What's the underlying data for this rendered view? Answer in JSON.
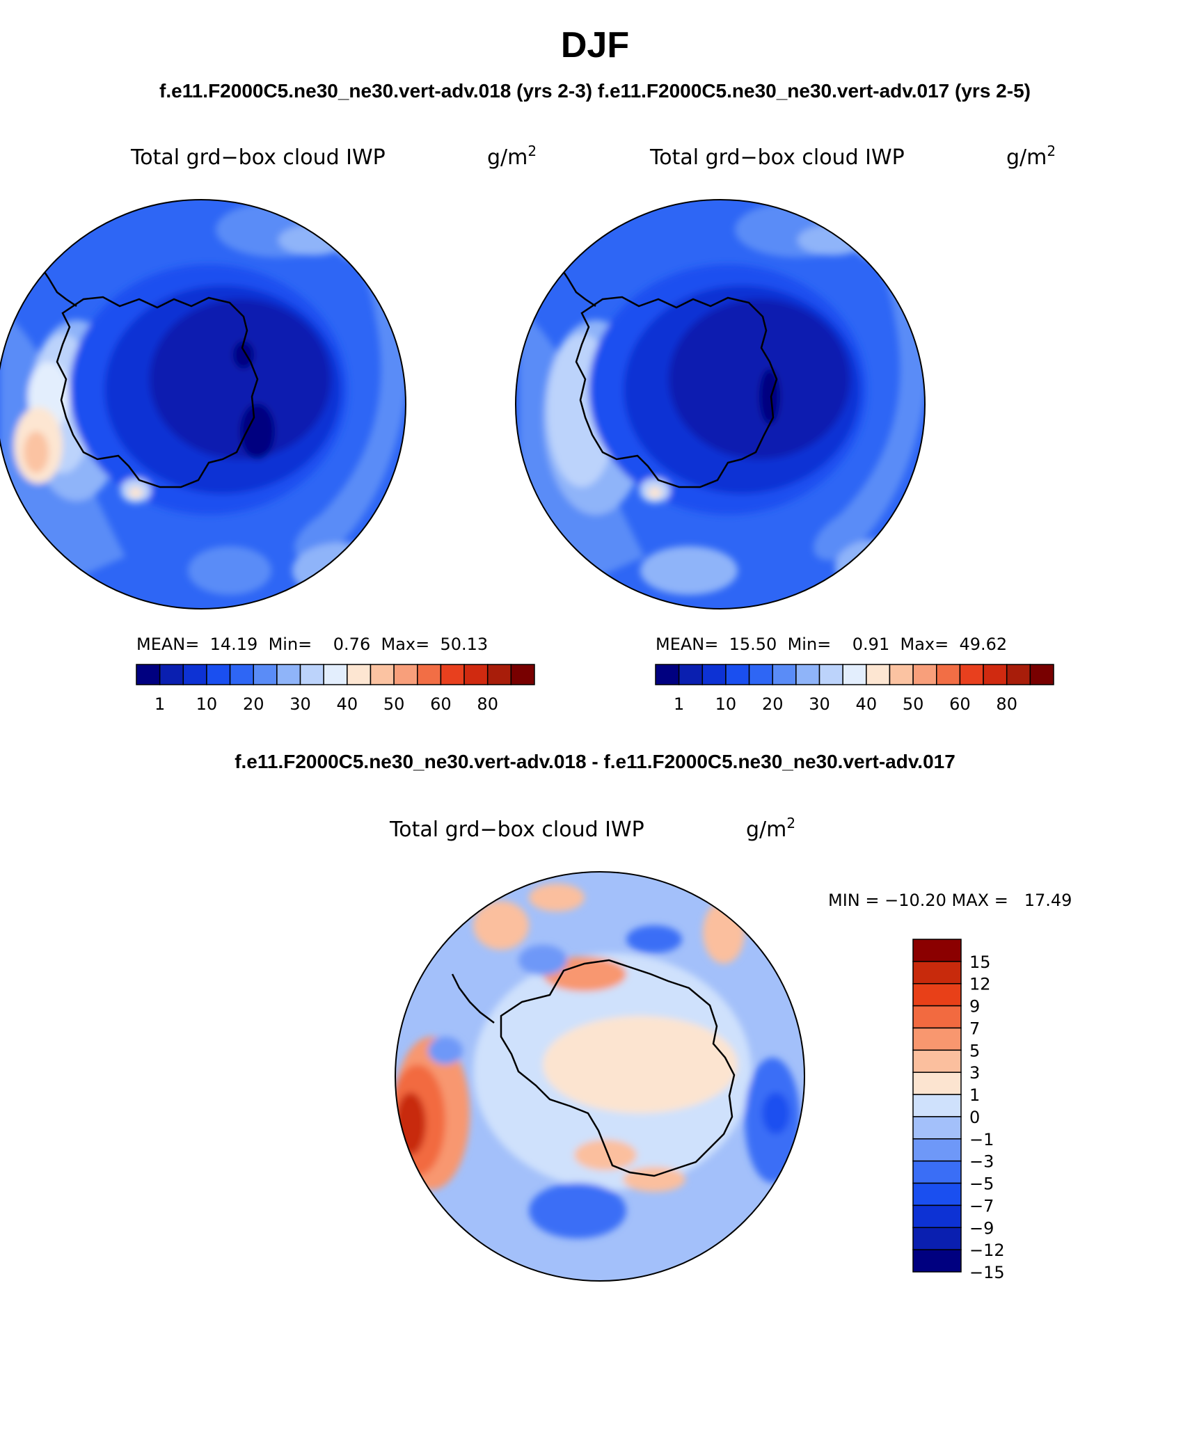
{
  "header": {
    "season": "DJF",
    "cases_line": "f.e11.F2000C5.ne30_ne30.vert-adv.018 (yrs 2-3) f.e11.F2000C5.ne30_ne30.vert-adv.017 (yrs 2-5)",
    "diff_line": "f.e11.F2000C5.ne30_ne30.vert-adv.018 - f.e11.F2000C5.ne30_ne30.vert-adv.017"
  },
  "colors": {
    "land_outline": "#000000",
    "abs_scale": [
      "#000080",
      "#0a1fb0",
      "#0d32d4",
      "#1a4ff0",
      "#2e66f5",
      "#5a8cf7",
      "#8fb4f9",
      "#bcd3fb",
      "#e3eefd",
      "#fde6d2",
      "#fbc3a2",
      "#f89f7b",
      "#f26e45",
      "#e8401e",
      "#d02a10",
      "#a81d0a",
      "#780000"
    ],
    "diff_scale": [
      "#000080",
      "#0a1fb0",
      "#0d32d4",
      "#1a4ff0",
      "#3a6ef6",
      "#6e98f8",
      "#a3c0fa",
      "#cfe1fc",
      "#fce4d0",
      "#fbbf9e",
      "#f8976f",
      "#f26a40",
      "#e84018",
      "#c82a0c",
      "#8b0000"
    ]
  },
  "chart_data": [
    {
      "type": "polar-contour-map",
      "panel": "case1",
      "title": "Total grd−box cloud IWP",
      "units_base": "g/m",
      "units_exp": "2",
      "stats_line": "MEAN=  14.19  Min=    0.76  Max=  50.13",
      "stats": {
        "mean": 14.19,
        "min": 0.76,
        "max": 50.13
      },
      "colorbar_ticks": [
        "1",
        "10",
        "20",
        "30",
        "40",
        "50",
        "60",
        "80"
      ],
      "colorbar_orientation": "horizontal"
    },
    {
      "type": "polar-contour-map",
      "panel": "case2",
      "title": "Total grd−box cloud IWP",
      "units_base": "g/m",
      "units_exp": "2",
      "stats_line": "MEAN=  15.50  Min=    0.91  Max=  49.62",
      "stats": {
        "mean": 15.5,
        "min": 0.91,
        "max": 49.62
      },
      "colorbar_ticks": [
        "1",
        "10",
        "20",
        "30",
        "40",
        "50",
        "60",
        "80"
      ],
      "colorbar_orientation": "horizontal"
    },
    {
      "type": "polar-contour-map",
      "panel": "difference",
      "title": "Total grd−box cloud IWP",
      "units_base": "g/m",
      "units_exp": "2",
      "stats_line": "MIN = −10.20 MAX =   17.49",
      "stats": {
        "min": -10.2,
        "max": 17.49
      },
      "colorbar_ticks": [
        "15",
        "12",
        "9",
        "7",
        "5",
        "3",
        "1",
        "0",
        "−1",
        "−3",
        "−5",
        "−7",
        "−9",
        "−12",
        "−15"
      ],
      "colorbar_orientation": "vertical"
    }
  ]
}
